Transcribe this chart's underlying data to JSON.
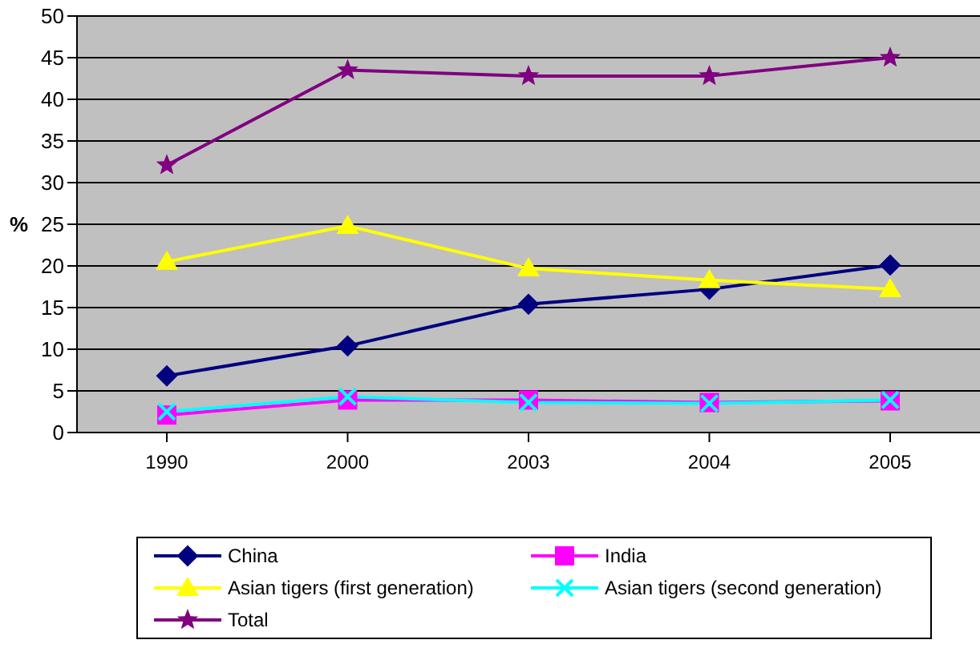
{
  "chart_data": {
    "type": "line",
    "ylabel": "%",
    "categories": [
      "1990",
      "2000",
      "2003",
      "2004",
      "2005"
    ],
    "ylim": [
      0,
      50
    ],
    "yticks": [
      0,
      5,
      10,
      15,
      20,
      25,
      30,
      35,
      40,
      45,
      50
    ],
    "grid": "y",
    "legend": "bottom",
    "series": [
      {
        "name": "China",
        "color": "#000080",
        "marker": "diamond",
        "values": [
          6.8,
          10.4,
          15.4,
          17.2,
          20.1
        ]
      },
      {
        "name": "India",
        "color": "#ff00ff",
        "marker": "square",
        "values": [
          2.1,
          3.9,
          3.9,
          3.6,
          3.8
        ]
      },
      {
        "name": "Asian tigers (first generation)",
        "color": "#ffff00",
        "marker": "triangle",
        "values": [
          20.5,
          24.8,
          19.7,
          18.3,
          17.2
        ]
      },
      {
        "name": "Asian tigers (second generation)",
        "color": "#00ffff",
        "marker": "cross",
        "values": [
          2.5,
          4.3,
          3.6,
          3.5,
          3.9
        ]
      },
      {
        "name": "Total",
        "color": "#800080",
        "marker": "star",
        "values": [
          32.1,
          43.5,
          42.8,
          42.8,
          45.0
        ]
      }
    ]
  }
}
